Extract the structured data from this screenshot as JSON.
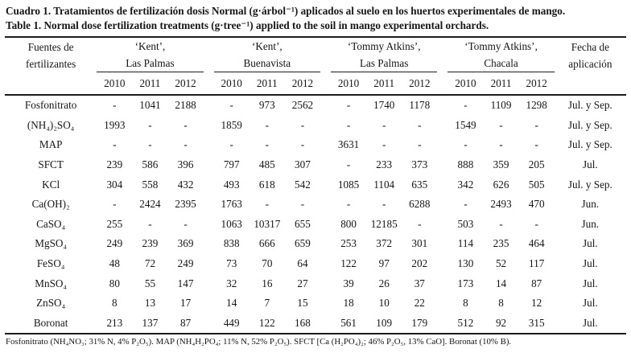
{
  "title": {
    "line_es": "Cuadro 1. Tratamientos de fertilización dosis Normal (g·árbol⁻¹) aplicados al suelo en los huertos experimentales de mango.",
    "line_en": "Table 1. Normal dose fertilization treatments (g·tree⁻¹) applied to the soil in mango experimental orchards."
  },
  "table": {
    "row_header": {
      "line1": "Fuentes de",
      "line2": "fertilizantes"
    },
    "date_header": {
      "line1": "Fecha de",
      "line2": "aplicación"
    },
    "groups": [
      {
        "cultivar": "‘Kent’,",
        "site": "Las Palmas",
        "years": [
          "2010",
          "2011",
          "2012"
        ]
      },
      {
        "cultivar": "‘Kent’,",
        "site": "Buenavista",
        "years": [
          "2010",
          "2011",
          "2012"
        ]
      },
      {
        "cultivar": "‘Tommy Atkins’,",
        "site": "Las Palmas",
        "years": [
          "2010",
          "2011",
          "2012"
        ]
      },
      {
        "cultivar": "‘Tommy Atkins’,",
        "site": "Chacala",
        "years": [
          "2010",
          "2011",
          "2012"
        ]
      }
    ],
    "rows": [
      {
        "source": "Fosfonitrato",
        "values": [
          "-",
          "1041",
          "2188",
          "-",
          "973",
          "2562",
          "-",
          "1740",
          "1178",
          "-",
          "1109",
          "1298"
        ],
        "date": "Jul. y Sep."
      },
      {
        "source": "(NH₄)₂SO₄",
        "values": [
          "1993",
          "-",
          "-",
          "1859",
          "-",
          "-",
          "-",
          "-",
          "-",
          "1549",
          "-",
          "-"
        ],
        "date": "Jul. y Sep."
      },
      {
        "source": "MAP",
        "values": [
          "-",
          "-",
          "-",
          "-",
          "-",
          "-",
          "3631",
          "-",
          "-",
          "-",
          "-",
          "-"
        ],
        "date": "Jul. y Sep."
      },
      {
        "source": "SFCT",
        "values": [
          "239",
          "586",
          "396",
          "797",
          "485",
          "307",
          "-",
          "233",
          "373",
          "888",
          "359",
          "205"
        ],
        "date": "Jul."
      },
      {
        "source": "KCl",
        "values": [
          "304",
          "558",
          "432",
          "493",
          "618",
          "542",
          "1085",
          "1104",
          "635",
          "342",
          "626",
          "505"
        ],
        "date": "Jul. y Sep."
      },
      {
        "source": "Ca(OH)₂",
        "values": [
          "-",
          "2424",
          "2395",
          "1763",
          "-",
          "-",
          "-",
          "-",
          "6288",
          "-",
          "2493",
          "470"
        ],
        "date": "Jun."
      },
      {
        "source": "CaSO₄",
        "values": [
          "255",
          "-",
          "-",
          "1063",
          "10317",
          "655",
          "800",
          "12185",
          "-",
          "503",
          "-",
          "-"
        ],
        "date": "Jun."
      },
      {
        "source": "MgSO₄",
        "values": [
          "249",
          "239",
          "369",
          "838",
          "666",
          "659",
          "253",
          "372",
          "301",
          "114",
          "235",
          "464"
        ],
        "date": "Jul."
      },
      {
        "source": "FeSO₄",
        "values": [
          "48",
          "72",
          "249",
          "73",
          "70",
          "64",
          "122",
          "97",
          "202",
          "130",
          "52",
          "117"
        ],
        "date": "Jul."
      },
      {
        "source": "MnSO₄",
        "values": [
          "80",
          "55",
          "147",
          "32",
          "16",
          "27",
          "39",
          "26",
          "37",
          "173",
          "14",
          "87"
        ],
        "date": "Jul."
      },
      {
        "source": "ZnSO₄",
        "values": [
          "8",
          "13",
          "17",
          "14",
          "7",
          "15",
          "18",
          "10",
          "22",
          "8",
          "8",
          "12"
        ],
        "date": "Jul."
      },
      {
        "source": "Boronat",
        "values": [
          "213",
          "137",
          "87",
          "449",
          "122",
          "168",
          "561",
          "109",
          "179",
          "512",
          "92",
          "315"
        ],
        "date": "Jul."
      }
    ]
  },
  "footnote": "Fosfonitrato (NH₄NO₃; 31% N, 4% P₂O₅). MAP (NH₄H₂PO₄; 11% N, 52% P₂O₅). SFCT [Ca (H₂PO₄)₂; 46% P₂O₅, 13% CaO]. Boronat (10% B).",
  "colors": {
    "text": "#161616",
    "rule": "#1c1c1c",
    "background": "#ffffff"
  }
}
